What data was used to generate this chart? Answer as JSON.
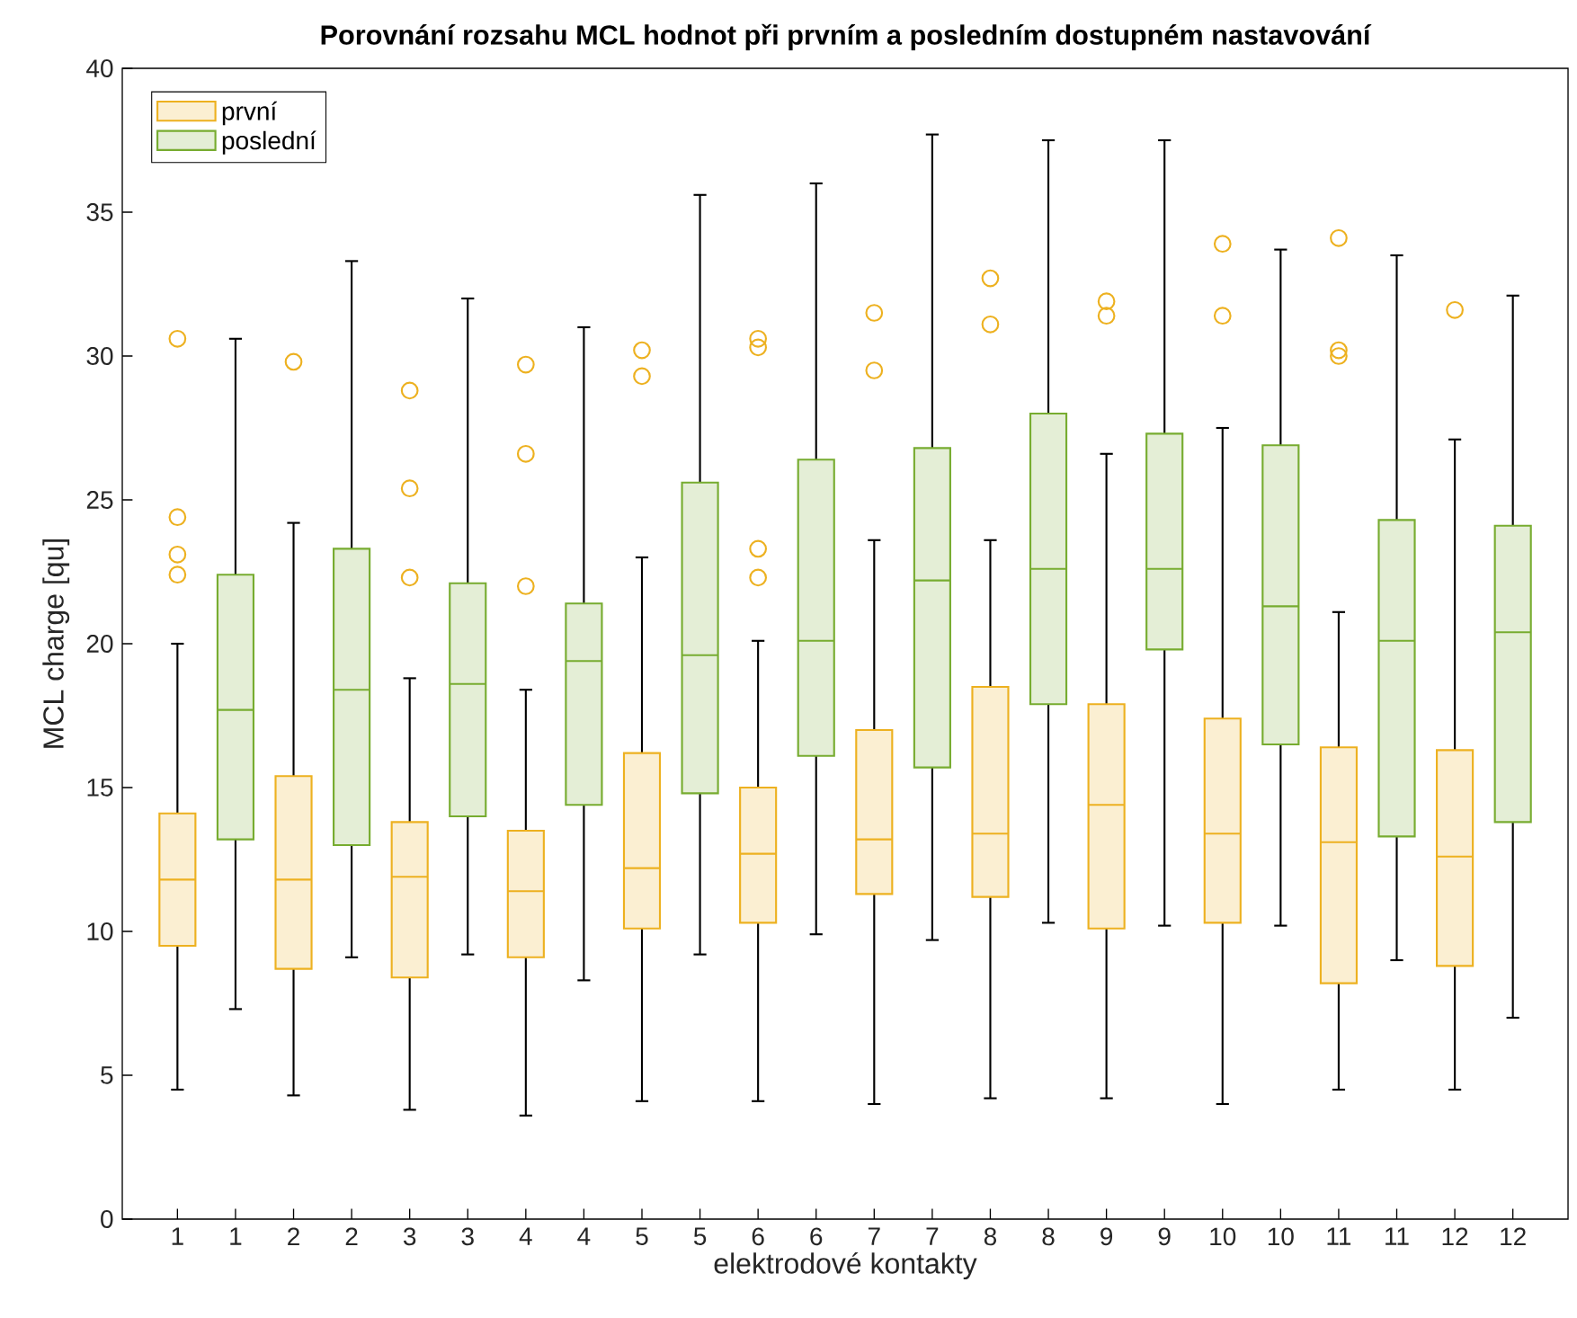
{
  "chart_data": {
    "type": "box",
    "title": "Porovnání rozsahu MCL hodnot při prvním a posledním dostupném nastavování",
    "xlabel": "elektrodové kontakty",
    "ylabel": "MCL charge [qu]",
    "categories": [
      "1",
      "1",
      "2",
      "2",
      "3",
      "3",
      "4",
      "4",
      "5",
      "5",
      "6",
      "6",
      "7",
      "7",
      "8",
      "8",
      "9",
      "9",
      "10",
      "10",
      "11",
      "11",
      "12",
      "12"
    ],
    "ylim": [
      0,
      40
    ],
    "yticks": [
      0,
      5,
      10,
      15,
      20,
      25,
      30,
      35,
      40
    ],
    "legend": "top left",
    "grid": false,
    "series": [
      {
        "name": "první",
        "color": "#edb120",
        "boxes": [
          {
            "low": 4.5,
            "q1": 9.5,
            "median": 11.8,
            "q3": 14.1,
            "high": 20.0,
            "outliers": [
              30.6,
              24.4,
              23.1,
              22.4
            ]
          },
          null,
          {
            "low": 4.3,
            "q1": 8.7,
            "median": 11.8,
            "q3": 15.4,
            "high": 24.2,
            "outliers": [
              29.8
            ]
          },
          null,
          {
            "low": 3.8,
            "q1": 8.4,
            "median": 11.9,
            "q3": 13.8,
            "high": 18.8,
            "outliers": [
              28.8,
              25.4,
              22.3
            ]
          },
          null,
          {
            "low": 3.6,
            "q1": 9.1,
            "median": 11.4,
            "q3": 13.5,
            "high": 18.4,
            "outliers": [
              29.7,
              26.6,
              22.0
            ]
          },
          null,
          {
            "low": 4.1,
            "q1": 10.1,
            "median": 12.2,
            "q3": 16.2,
            "high": 23.0,
            "outliers": [
              30.2,
              29.3
            ]
          },
          null,
          {
            "low": 4.1,
            "q1": 10.3,
            "median": 12.7,
            "q3": 15.0,
            "high": 20.1,
            "outliers": [
              30.6,
              30.3,
              23.3,
              22.3
            ]
          },
          null,
          {
            "low": 4.0,
            "q1": 11.3,
            "median": 13.2,
            "q3": 17.0,
            "high": 23.6,
            "outliers": [
              31.5,
              29.5
            ]
          },
          null,
          {
            "low": 4.2,
            "q1": 11.2,
            "median": 13.4,
            "q3": 18.5,
            "high": 23.6,
            "outliers": [
              32.7,
              31.1
            ]
          },
          null,
          {
            "low": 4.2,
            "q1": 10.1,
            "median": 14.4,
            "q3": 17.9,
            "high": 26.6,
            "outliers": [
              31.9,
              31.4
            ]
          },
          null,
          {
            "low": 4.0,
            "q1": 10.3,
            "median": 13.4,
            "q3": 17.4,
            "high": 27.5,
            "outliers": [
              33.9,
              31.4
            ]
          },
          null,
          {
            "low": 4.5,
            "q1": 8.2,
            "median": 13.1,
            "q3": 16.4,
            "high": 21.1,
            "outliers": [
              34.1,
              30.2,
              30.0
            ]
          },
          null,
          {
            "low": 4.5,
            "q1": 8.8,
            "median": 12.6,
            "q3": 16.3,
            "high": 27.1,
            "outliers": [
              31.6
            ]
          },
          null
        ]
      },
      {
        "name": "poslední",
        "color": "#77ac30",
        "boxes": [
          null,
          {
            "low": 7.3,
            "q1": 13.2,
            "median": 17.7,
            "q3": 22.4,
            "high": 30.6
          },
          null,
          {
            "low": 9.1,
            "q1": 13.0,
            "median": 18.4,
            "q3": 23.3,
            "high": 33.3
          },
          null,
          {
            "low": 9.2,
            "q1": 14.0,
            "median": 18.6,
            "q3": 22.1,
            "high": 32.0
          },
          null,
          {
            "low": 8.3,
            "q1": 14.4,
            "median": 19.4,
            "q3": 21.4,
            "high": 31.0
          },
          null,
          {
            "low": 9.2,
            "q1": 14.8,
            "median": 19.6,
            "q3": 25.6,
            "high": 35.6
          },
          null,
          {
            "low": 9.9,
            "q1": 16.1,
            "median": 20.1,
            "q3": 26.4,
            "high": 36.0
          },
          null,
          {
            "low": 9.7,
            "q1": 15.7,
            "median": 22.2,
            "q3": 26.8,
            "high": 37.7
          },
          null,
          {
            "low": 10.3,
            "q1": 17.9,
            "median": 22.6,
            "q3": 28.0,
            "high": 37.5
          },
          null,
          {
            "low": 10.2,
            "q1": 19.8,
            "median": 22.6,
            "q3": 27.3,
            "high": 37.5
          },
          null,
          {
            "low": 10.2,
            "q1": 16.5,
            "median": 21.3,
            "q3": 26.9,
            "high": 33.7
          },
          null,
          {
            "low": 9.0,
            "q1": 13.3,
            "median": 20.1,
            "q3": 24.3,
            "high": 33.5
          },
          null,
          {
            "low": 7.0,
            "q1": 13.8,
            "median": 20.4,
            "q3": 24.1,
            "high": 32.1
          }
        ]
      }
    ]
  }
}
